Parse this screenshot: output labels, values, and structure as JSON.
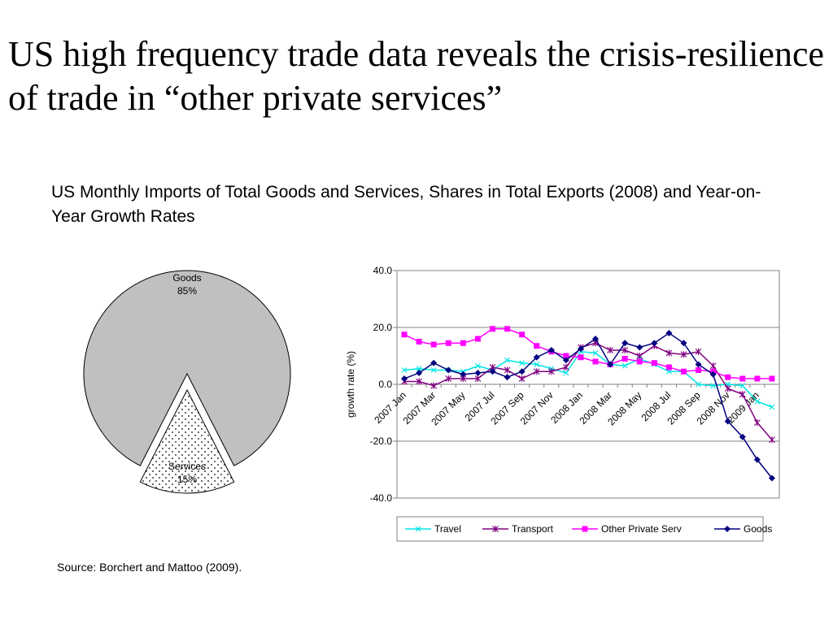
{
  "title": "US high frequency trade data reveals the crisis-resilience of trade in “other private services”",
  "subtitle": "US Monthly Imports of Total Goods and Services, Shares in Total Exports (2008) and Year-on-Year Growth Rates",
  "source": "Source: Borchert and Mattoo (2009).",
  "chart_data": [
    {
      "type": "pie",
      "slices": [
        {
          "label": "Goods",
          "value": 85,
          "value_label": "85%",
          "color": "#c0c0c0",
          "pattern": "solid"
        },
        {
          "label": "Services",
          "value": 15,
          "value_label": "15%",
          "color": "#ffffff",
          "pattern": "dotted",
          "exploded": true
        }
      ]
    },
    {
      "type": "line",
      "ylabel": "growth rate (%)",
      "ylim": [
        -40,
        40
      ],
      "yticks": [
        "40.0",
        "20.0",
        "0.0",
        "-20.0",
        "-40.0"
      ],
      "ytick_values": [
        40,
        20,
        0,
        -20,
        -40
      ],
      "grid": true,
      "legend": "bottom",
      "x": [
        "2007 Jan",
        "2007 Feb",
        "2007 Mar",
        "2007 Apr",
        "2007 May",
        "2007 Jun",
        "2007 Jul",
        "2007 Aug",
        "2007 Sep",
        "2007 Oct",
        "2007 Nov",
        "2007 Dec",
        "2008 Jan",
        "2008 Feb",
        "2008 Mar",
        "2008 Apr",
        "2008 May",
        "2008 Jun",
        "2008 Jul",
        "2008 Aug",
        "2008 Sep",
        "2008 Oct",
        "2008 Nov",
        "2008 Dec",
        "2009 Jan",
        "2009 Feb"
      ],
      "xticks": [
        "2007 Jan",
        "2007 Mar",
        "2007 May",
        "2007 Jul",
        "2007 Sep",
        "2007 Nov",
        "2008 Jan",
        "2008 Mar",
        "2008 May",
        "2008 Jul",
        "2008 Sep",
        "2008 Nov",
        "2009 Jan"
      ],
      "series": [
        {
          "name": "Travel",
          "color": "#00e5e5",
          "marker": "x",
          "values": [
            5.0,
            5.5,
            5.0,
            5.0,
            4.5,
            6.5,
            5.0,
            8.5,
            7.5,
            7.0,
            5.5,
            4.0,
            11.5,
            11.0,
            7.0,
            6.5,
            9.0,
            7.0,
            4.5,
            4.5,
            0.0,
            -0.5,
            0.0,
            -0.5,
            -6.0,
            -8.0
          ]
        },
        {
          "name": "Transport",
          "color": "#800080",
          "marker": "star",
          "values": [
            1.0,
            1.0,
            -0.5,
            2.0,
            2.0,
            2.0,
            6.0,
            5.0,
            2.0,
            4.5,
            4.5,
            6.0,
            13.0,
            14.5,
            12.0,
            12.0,
            10.0,
            13.5,
            11.0,
            10.5,
            11.5,
            6.5,
            -1.5,
            -3.5,
            -13.5,
            -19.5
          ]
        },
        {
          "name": "Other Private Serv",
          "color": "#ff00ff",
          "marker": "square",
          "values": [
            17.5,
            15.0,
            14.0,
            14.5,
            14.5,
            16.0,
            19.5,
            19.5,
            17.5,
            13.5,
            11.5,
            10.0,
            9.5,
            8.0,
            7.0,
            9.0,
            8.0,
            7.5,
            6.0,
            4.5,
            5.0,
            4.5,
            2.5,
            2.0,
            2.0,
            2.0
          ]
        },
        {
          "name": "Goods",
          "color": "#000080",
          "marker": "diamond",
          "values": [
            2.0,
            4.0,
            7.5,
            5.0,
            3.5,
            4.0,
            4.5,
            2.5,
            4.5,
            9.5,
            12.0,
            8.5,
            12.5,
            16.0,
            7.0,
            14.5,
            13.0,
            14.5,
            18.0,
            14.5,
            7.0,
            3.5,
            -13.0,
            -18.5,
            -26.5,
            -33.0
          ]
        }
      ]
    }
  ]
}
